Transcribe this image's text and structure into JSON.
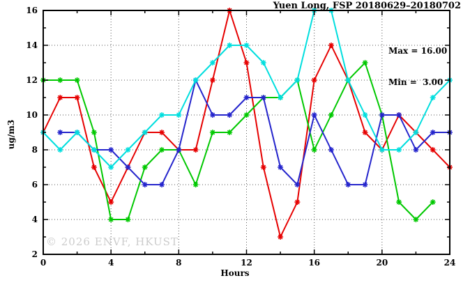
{
  "title": "Yuen Long, FSP 20180629–20180702",
  "legend": {
    "max_label": "Max = 16.00",
    "min_label": "Min =  3.00"
  },
  "watermark": "© 2026 ENVF, HKUST",
  "chart_data": {
    "type": "line",
    "title": "Yuen Long, FSP 20180629–20180702",
    "xlabel": "Hours",
    "ylabel": "ug/m3",
    "xlim": [
      0,
      24
    ],
    "ylim": [
      2,
      16
    ],
    "x_ticks_major": [
      0,
      4,
      8,
      12,
      16,
      20,
      24
    ],
    "x_ticks_minor": [
      2,
      6,
      10,
      14,
      18,
      22
    ],
    "y_ticks_major": [
      2,
      4,
      6,
      8,
      10,
      12,
      14,
      16
    ],
    "y_ticks_minor": [
      3,
      5,
      7,
      9,
      11,
      13,
      15
    ],
    "x_gridlines": [
      4,
      8,
      12,
      16,
      20
    ],
    "y_gridlines": [
      4,
      6,
      8,
      10,
      12,
      14
    ],
    "grid": true,
    "legend_position": "top-right-inside",
    "stats": {
      "max": 16.0,
      "min": 3.0
    },
    "x": [
      0,
      1,
      2,
      3,
      4,
      5,
      6,
      7,
      8,
      9,
      10,
      11,
      12,
      13,
      14,
      15,
      16,
      17,
      18,
      19,
      20,
      21,
      22,
      23,
      24
    ],
    "series": [
      {
        "name": "red",
        "color": "#e60000",
        "values": [
          9,
          11,
          11,
          7,
          5,
          7,
          9,
          9,
          8,
          8,
          12,
          16,
          13,
          7,
          3,
          5,
          12,
          14,
          12,
          9,
          8,
          10,
          9,
          8,
          7
        ]
      },
      {
        "name": "green",
        "color": "#00c800",
        "values": [
          12,
          12,
          12,
          9,
          4,
          4,
          7,
          8,
          8,
          6,
          9,
          9,
          10,
          11,
          11,
          12,
          8,
          10,
          12,
          13,
          10,
          5,
          4,
          5,
          null
        ]
      },
      {
        "name": "blue",
        "color": "#2424cc",
        "values": [
          null,
          9,
          9,
          8,
          8,
          7,
          6,
          6,
          8,
          12,
          10,
          10,
          11,
          11,
          7,
          6,
          10,
          8,
          6,
          6,
          10,
          10,
          8,
          9,
          9
        ]
      },
      {
        "name": "cyan",
        "color": "#00dede",
        "values": [
          9,
          8,
          9,
          8,
          7,
          8,
          9,
          10,
          10,
          12,
          13,
          14,
          14,
          13,
          11,
          12,
          16,
          16,
          12,
          10,
          8,
          8,
          9,
          11,
          12
        ]
      }
    ]
  }
}
